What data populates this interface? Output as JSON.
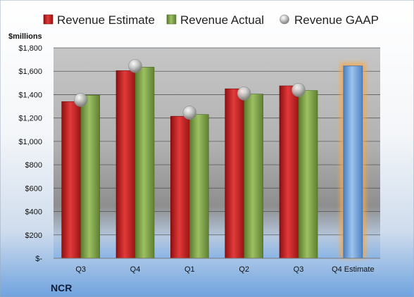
{
  "chart_data": {
    "type": "bar",
    "company": "NCR",
    "units_label": "$millions",
    "categories": [
      "Q3",
      "Q4",
      "Q1",
      "Q2",
      "Q3",
      "Q4 Estimate"
    ],
    "series": [
      {
        "name": "Revenue Estimate",
        "kind": "bar",
        "color": "#d42222",
        "values": [
          1340,
          1605,
          1215,
          1450,
          1475,
          null
        ]
      },
      {
        "name": "Revenue Actual",
        "kind": "bar",
        "color": "#7fa34a",
        "values": [
          1395,
          1635,
          1230,
          1405,
          1435,
          null
        ]
      },
      {
        "name": "Revenue GAAP",
        "kind": "marker",
        "color": "#b8b8b8",
        "values": [
          1355,
          1645,
          1245,
          1410,
          1440,
          null
        ]
      }
    ],
    "estimate": {
      "category": "Q4 Estimate",
      "value": 1645,
      "color": "#6a9fd6",
      "glow": "#f7a94a"
    },
    "y_ticks": [
      "$-",
      "$200",
      "$400",
      "$600",
      "$800",
      "$1,000",
      "$1,200",
      "$1,400",
      "$1,600",
      "$1,800"
    ],
    "ylim": [
      0,
      1800
    ],
    "grid": true,
    "legend_position": "top"
  }
}
